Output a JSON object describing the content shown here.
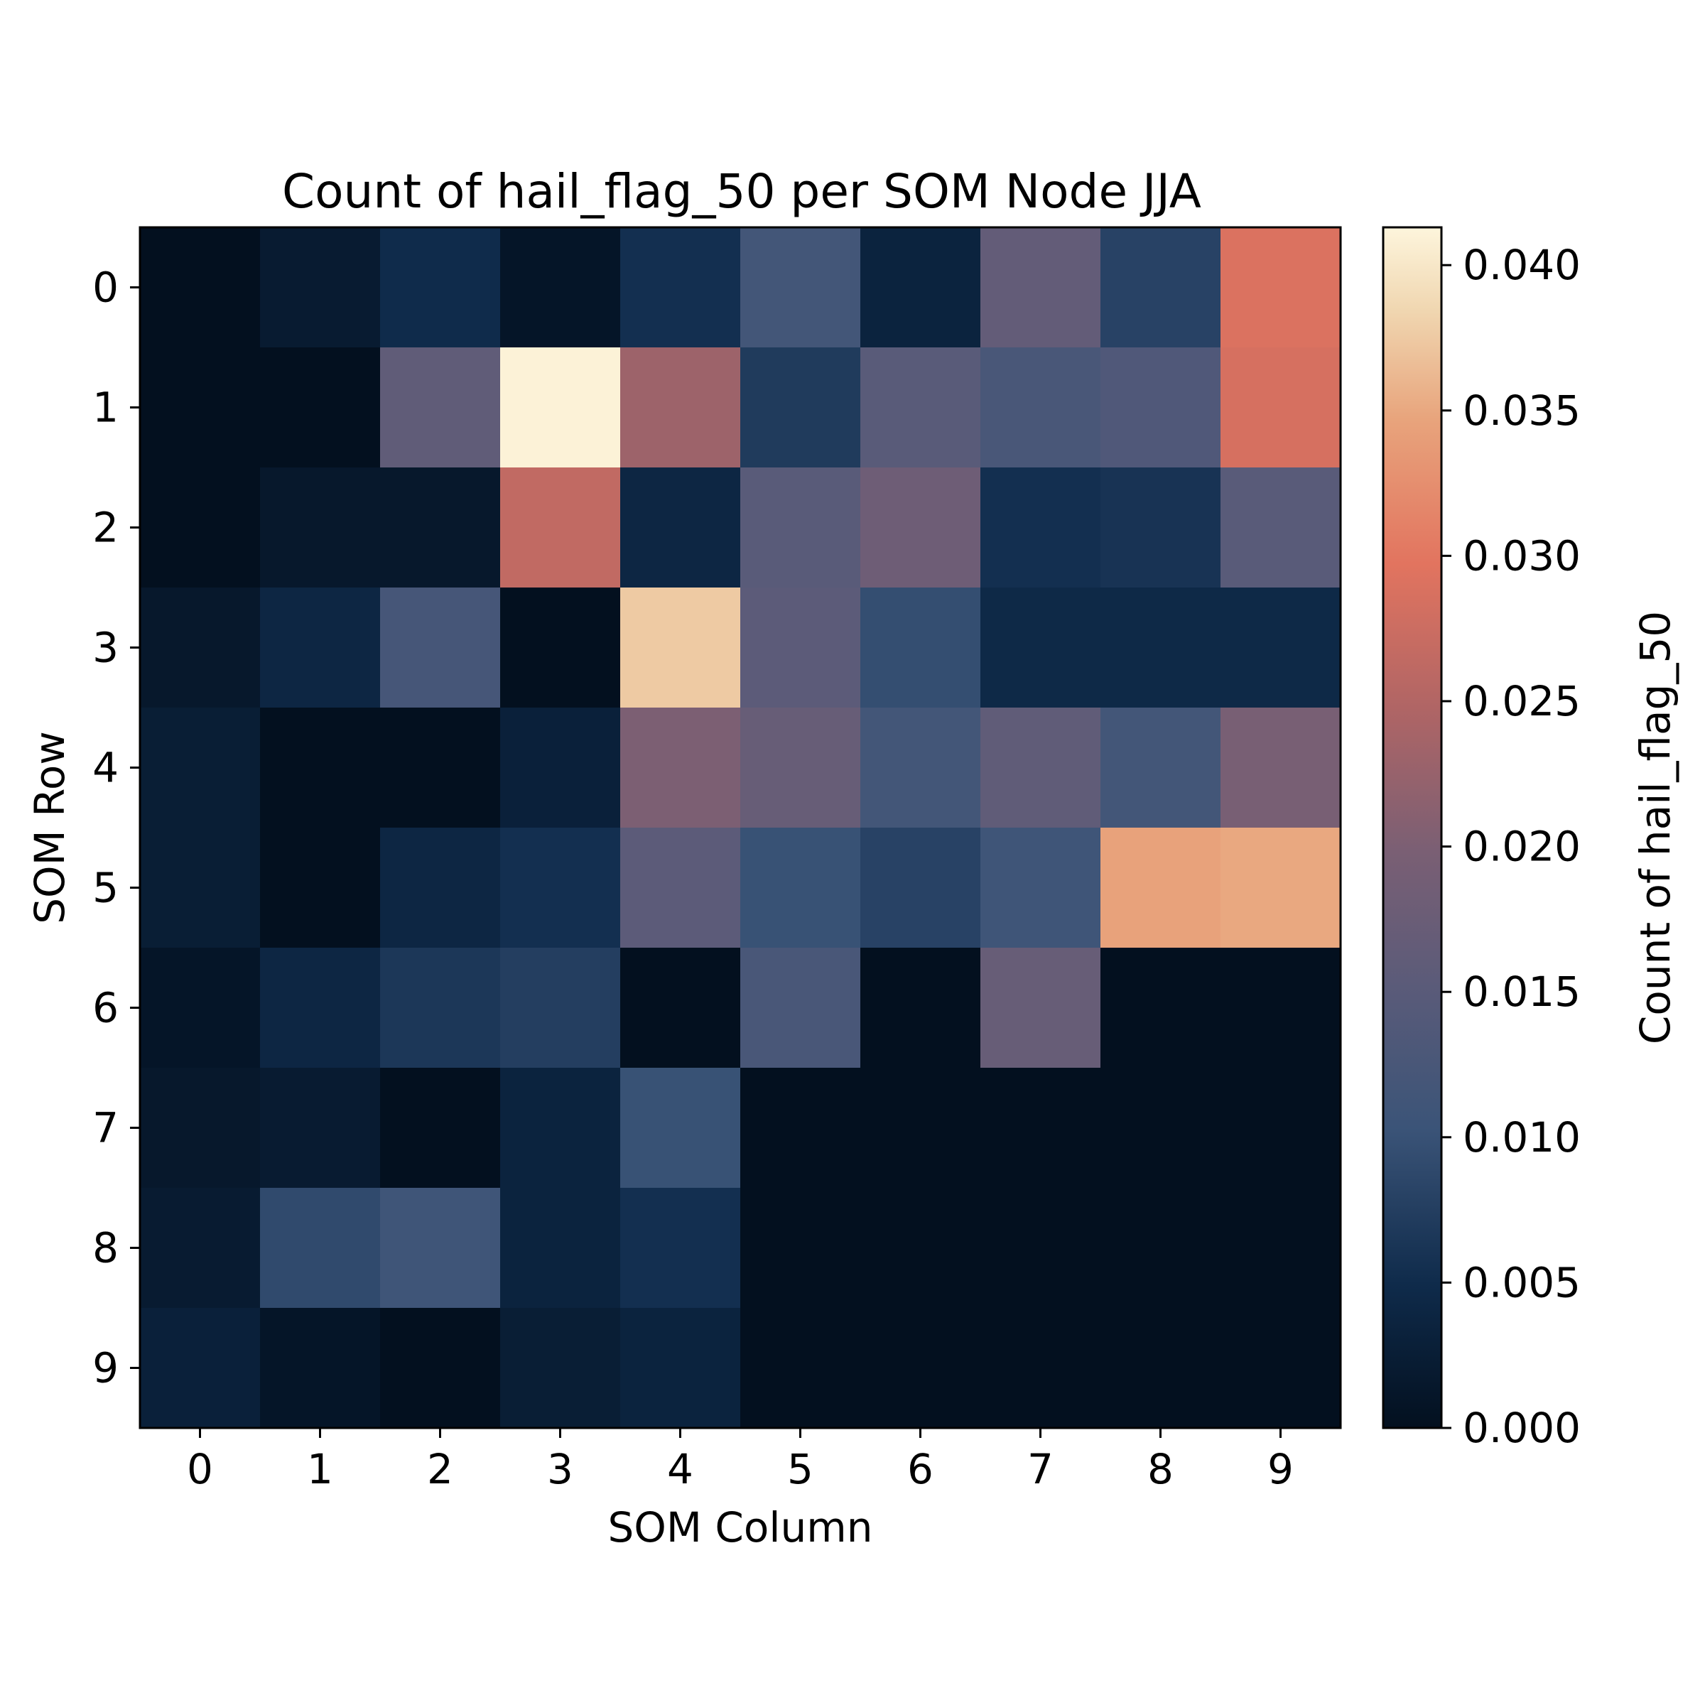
{
  "chart_data": {
    "type": "heatmap",
    "title": "Count of hail_flag_50 per SOM Node JJA",
    "xlabel": "SOM Column",
    "ylabel": "SOM Row",
    "colorbar_label": "Count of hail_flag_50",
    "x_categories": [
      "0",
      "1",
      "2",
      "3",
      "4",
      "5",
      "6",
      "7",
      "8",
      "9"
    ],
    "y_categories": [
      "0",
      "1",
      "2",
      "3",
      "4",
      "5",
      "6",
      "7",
      "8",
      "9"
    ],
    "colorbar_ticks": [
      "0.000",
      "0.005",
      "0.010",
      "0.015",
      "0.020",
      "0.025",
      "0.030",
      "0.035",
      "0.040"
    ],
    "vmin": 0.0,
    "vmax": 0.0413,
    "colormap_stops": [
      {
        "v": 0.0,
        "color": "#03101f"
      },
      {
        "v": 0.12,
        "color": "#0f2b4b"
      },
      {
        "v": 0.25,
        "color": "#3b5478"
      },
      {
        "v": 0.37,
        "color": "#5b5b79"
      },
      {
        "v": 0.48,
        "color": "#7a5f74"
      },
      {
        "v": 0.6,
        "color": "#b06565"
      },
      {
        "v": 0.72,
        "color": "#e2745f"
      },
      {
        "v": 0.84,
        "color": "#e8a47c"
      },
      {
        "v": 0.93,
        "color": "#f0d6b0"
      },
      {
        "v": 1.0,
        "color": "#fdf5dc"
      }
    ],
    "values": [
      [
        0.0,
        0.002,
        0.005,
        0.001,
        0.0055,
        0.0115,
        0.0035,
        0.0165,
        0.008,
        0.029
      ],
      [
        0.0,
        0.0,
        0.016,
        0.041,
        0.023,
        0.007,
        0.015,
        0.0125,
        0.0135,
        0.0285
      ],
      [
        0.0,
        0.0015,
        0.0015,
        0.0265,
        0.004,
        0.015,
        0.018,
        0.0055,
        0.006,
        0.015
      ],
      [
        0.0015,
        0.004,
        0.012,
        0.0,
        0.0375,
        0.0155,
        0.0095,
        0.0045,
        0.0045,
        0.0045
      ],
      [
        0.0025,
        0.0,
        0.0,
        0.003,
        0.02,
        0.017,
        0.0115,
        0.016,
        0.0115,
        0.0195
      ],
      [
        0.0025,
        0.0,
        0.004,
        0.0055,
        0.0155,
        0.01,
        0.008,
        0.011,
        0.0345,
        0.035
      ],
      [
        0.001,
        0.004,
        0.0065,
        0.0075,
        0.0,
        0.0125,
        0.0,
        0.017,
        0.0,
        0.0
      ],
      [
        0.0015,
        0.002,
        0.0,
        0.0035,
        0.01,
        0.0,
        0.0,
        0.0,
        0.0,
        0.0
      ],
      [
        0.002,
        0.009,
        0.011,
        0.0035,
        0.0055,
        0.0,
        0.0,
        0.0,
        0.0,
        0.0
      ],
      [
        0.003,
        0.001,
        0.0,
        0.0025,
        0.0035,
        0.0,
        0.0,
        0.0,
        0.0,
        0.0
      ]
    ],
    "grid": false,
    "legend": "colorbar-right"
  }
}
